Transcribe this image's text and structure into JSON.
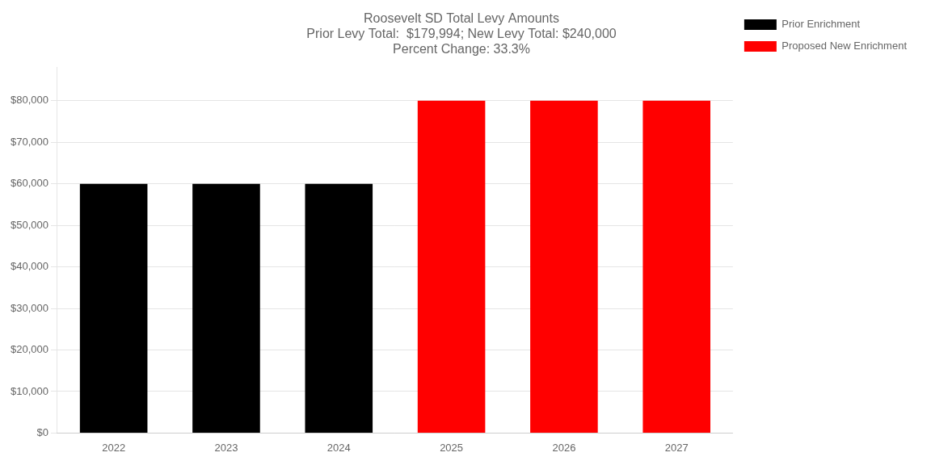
{
  "chart_data": {
    "type": "bar",
    "title": "Roosevelt SD Total Levy Amounts\nPrior Levy Total:  $179,994; New Levy Total: $240,000\nPercent Change: 33.3%",
    "categories": [
      "2022",
      "2023",
      "2024",
      "2025",
      "2026",
      "2027"
    ],
    "series": [
      {
        "name": "Prior Enrichment",
        "color": "#000000",
        "values": [
          59998,
          59998,
          59998,
          null,
          null,
          null
        ]
      },
      {
        "name": "Proposed New Enrichment",
        "color": "#ff0000",
        "values": [
          null,
          null,
          null,
          80000,
          80000,
          80000
        ]
      }
    ],
    "ylim": [
      0,
      88000
    ],
    "yticks": [
      {
        "value": 0,
        "label": "$0"
      },
      {
        "value": 10000,
        "label": "$10,000"
      },
      {
        "value": 20000,
        "label": "$20,000"
      },
      {
        "value": 30000,
        "label": "$30,000"
      },
      {
        "value": 40000,
        "label": "$40,000"
      },
      {
        "value": 50000,
        "label": "$50,000"
      },
      {
        "value": 60000,
        "label": "$60,000"
      },
      {
        "value": 70000,
        "label": "$70,000"
      },
      {
        "value": 80000,
        "label": "$80,000"
      }
    ],
    "grid": true,
    "legend": "right"
  }
}
